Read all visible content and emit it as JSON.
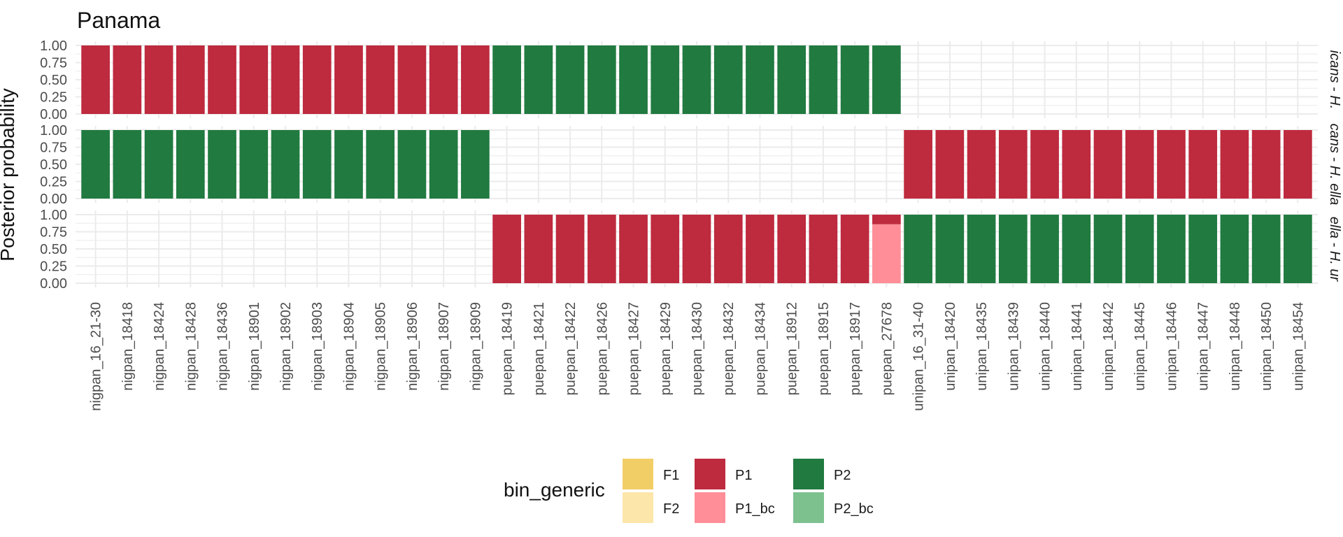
{
  "chart_data": {
    "type": "bar",
    "title": "Panama",
    "xlabel": "",
    "ylabel": "Posterior probability",
    "ylim": [
      0,
      1
    ],
    "yticks": [
      "0.00",
      "0.25",
      "0.50",
      "0.75",
      "1.00"
    ],
    "grid": true,
    "legend_position": "bottom",
    "legend": {
      "title": "bin_generic",
      "items": [
        {
          "label": "F1",
          "color": "#F2CE67"
        },
        {
          "label": "F2",
          "color": "#FCE6A9"
        },
        {
          "label": "P1",
          "color": "#BE2A3E"
        },
        {
          "label": "P1_bc",
          "color": "#FF8E98"
        },
        {
          "label": "P2",
          "color": "#217A40"
        },
        {
          "label": "P2_bc",
          "color": "#7DC18F"
        }
      ]
    },
    "categories": [
      "nigpan_16_21-30",
      "nigpan_18418",
      "nigpan_18424",
      "nigpan_18428",
      "nigpan_18436",
      "nigpan_18901",
      "nigpan_18902",
      "nigpan_18903",
      "nigpan_18904",
      "nigpan_18905",
      "nigpan_18906",
      "nigpan_18907",
      "nigpan_18909",
      "puepan_18419",
      "puepan_18421",
      "puepan_18422",
      "puepan_18426",
      "puepan_18427",
      "puepan_18429",
      "puepan_18430",
      "puepan_18432",
      "puepan_18434",
      "puepan_18912",
      "puepan_18915",
      "puepan_18917",
      "puepan_27678",
      "unipan_16_31-40",
      "unipan_18420",
      "unipan_18435",
      "unipan_18439",
      "unipan_18440",
      "unipan_18441",
      "unipan_18442",
      "unipan_18445",
      "unipan_18446",
      "unipan_18447",
      "unipan_18448",
      "unipan_18450",
      "unipan_18454"
    ],
    "panels": [
      {
        "strip": "icans - H.",
        "bars": [
          {
            "from": 0,
            "to": 12,
            "segments": [
              {
                "class": "P1",
                "value": 1
              }
            ]
          },
          {
            "from": 13,
            "to": 25,
            "segments": [
              {
                "class": "P2",
                "value": 1
              }
            ]
          }
        ]
      },
      {
        "strip": "cans - H. ella",
        "bars": [
          {
            "from": 0,
            "to": 12,
            "segments": [
              {
                "class": "P2",
                "value": 1
              }
            ]
          },
          {
            "from": 26,
            "to": 38,
            "segments": [
              {
                "class": "P1",
                "value": 1
              }
            ]
          }
        ]
      },
      {
        "strip": "ella - H. ur",
        "bars": [
          {
            "from": 13,
            "to": 24,
            "segments": [
              {
                "class": "P1",
                "value": 1
              }
            ]
          },
          {
            "from": 25,
            "to": 25,
            "segments": [
              {
                "class": "P1_bc",
                "value": 0.86
              },
              {
                "class": "P1",
                "value": 0.14
              }
            ]
          },
          {
            "from": 26,
            "to": 38,
            "segments": [
              {
                "class": "P2",
                "value": 1
              }
            ]
          }
        ]
      }
    ]
  }
}
